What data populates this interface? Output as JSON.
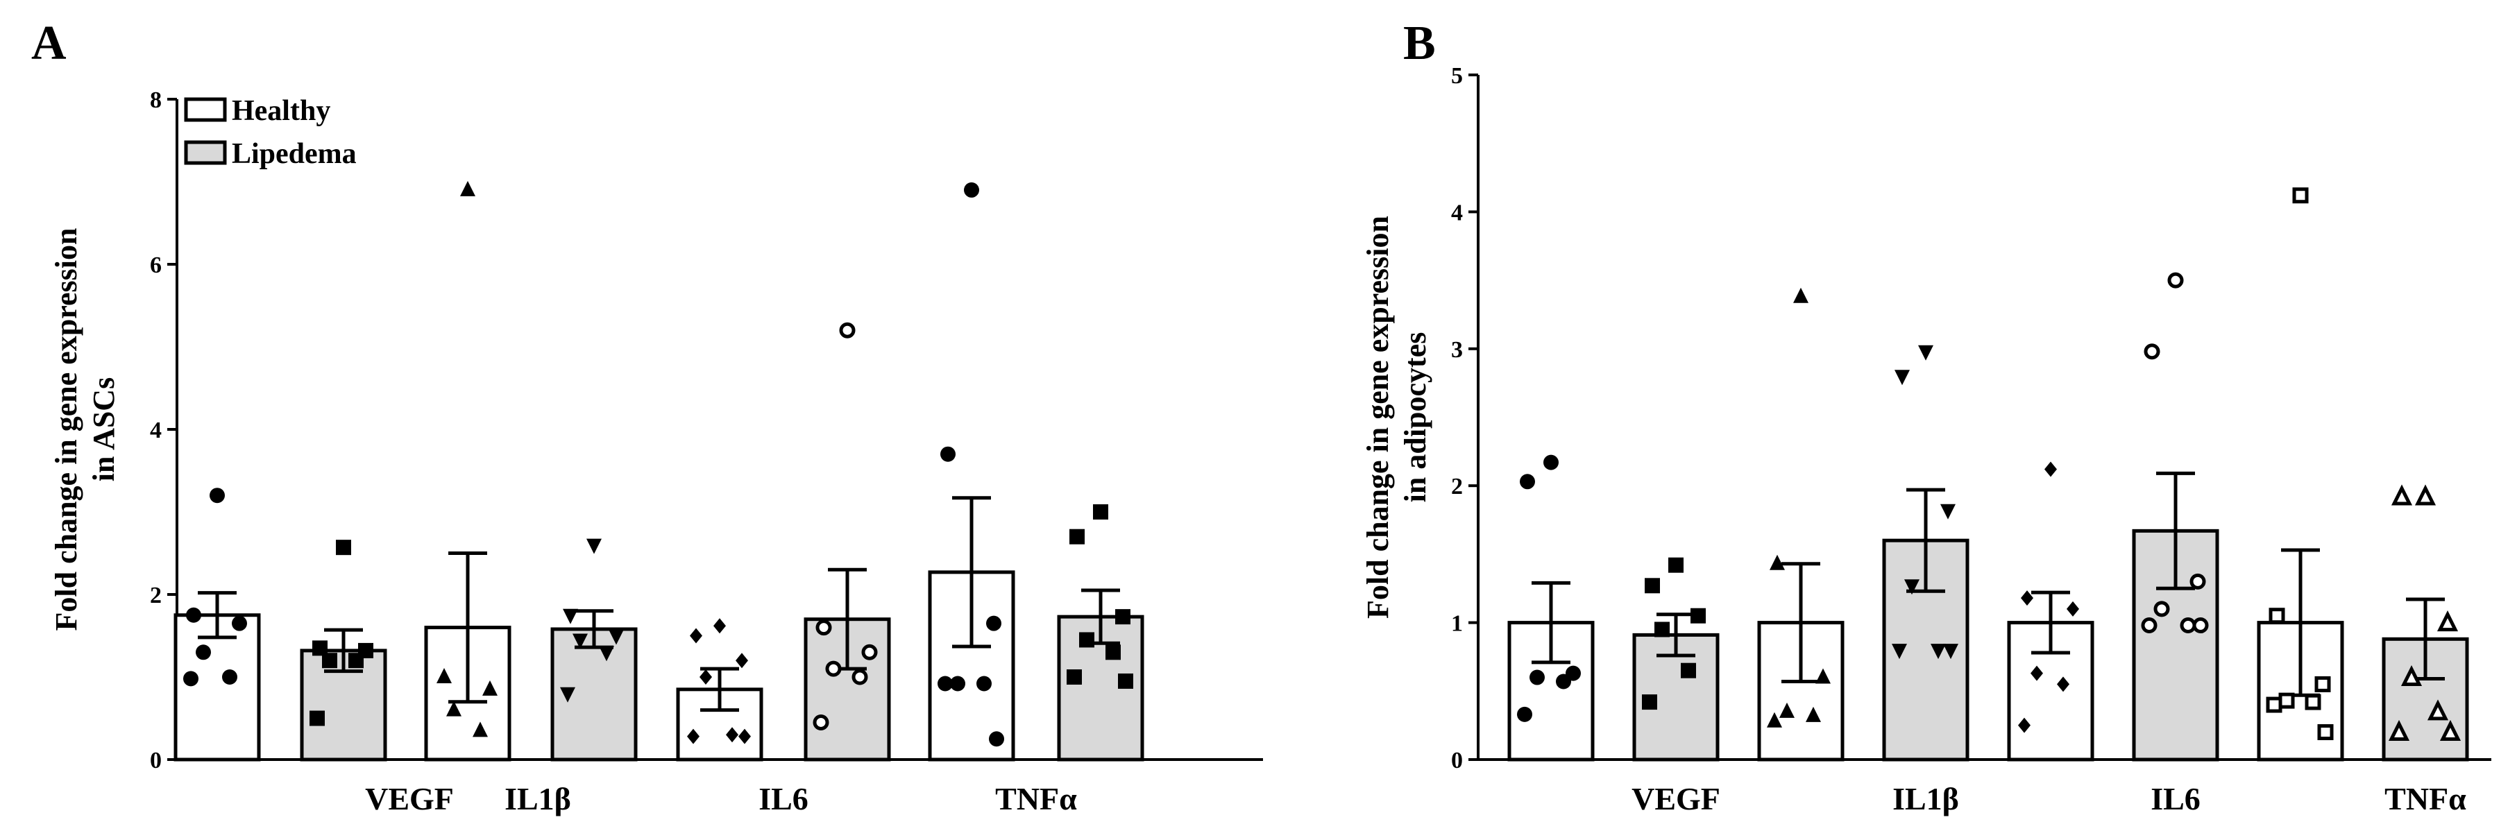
{
  "colors": {
    "healthy": "#ffffff",
    "lipedema": "#d9d9d9",
    "ink": "#000000"
  },
  "legend": {
    "healthy": "Healthy",
    "lipedema": "Lipedema"
  },
  "chart_data": [
    {
      "type": "bar",
      "panel": "A",
      "ylabel": [
        "Fold change in gene expression",
        "in ASCs"
      ],
      "ylim": [
        0,
        8
      ],
      "yticks": [
        0,
        2,
        4,
        6,
        8
      ],
      "categories": [
        "VEGF",
        "IL1β",
        "IL6",
        "TNFα"
      ],
      "series": [
        {
          "name": "Healthy",
          "values": [
            1.75,
            1.6,
            0.85,
            2.27
          ],
          "sem": [
            0.27,
            0.9,
            0.25,
            0.9
          ],
          "points": [
            [
              3.2,
              1.75,
              1.65,
              1.3,
              1.0,
              0.98
            ],
            [
              6.9,
              1.0,
              0.85,
              0.6,
              0.35
            ],
            [
              1.62,
              1.5,
              1.2,
              1.0,
              0.3,
              0.28,
              0.28
            ],
            [
              6.9,
              3.7,
              1.65,
              0.92,
              0.92,
              0.92,
              0.25
            ]
          ]
        },
        {
          "name": "Lipedema",
          "values": [
            1.32,
            1.58,
            1.7,
            1.73
          ],
          "sem": [
            0.25,
            0.22,
            0.6,
            0.32
          ],
          "points": [
            [
              2.57,
              1.35,
              1.32,
              1.2,
              1.2,
              0.5
            ],
            [
              2.6,
              1.75,
              1.5,
              1.45,
              1.3,
              0.8
            ],
            [
              5.2,
              1.6,
              1.3,
              1.1,
              1.0,
              0.45
            ],
            [
              3.0,
              2.7,
              1.73,
              1.45,
              1.3,
              1.0,
              0.95
            ]
          ]
        }
      ]
    },
    {
      "type": "bar",
      "panel": "B",
      "ylabel": [
        "Fold change in gene expression",
        "in adipocytes"
      ],
      "ylim": [
        0,
        5
      ],
      "yticks": [
        0,
        1,
        2,
        3,
        4,
        5
      ],
      "categories": [
        "VEGF",
        "IL1β",
        "IL6",
        "TNFα"
      ],
      "series": [
        {
          "name": "Healthy",
          "values": [
            1.0,
            1.0,
            1.0,
            1.0
          ],
          "sem": [
            0.29,
            0.43,
            0.22,
            0.53
          ],
          "points": [
            [
              2.17,
              2.03,
              0.63,
              0.6,
              0.57,
              0.33
            ],
            [
              3.38,
              1.43,
              0.6,
              0.35,
              0.32,
              0.28
            ],
            [
              2.12,
              1.18,
              1.1,
              0.63,
              0.55,
              0.25
            ],
            [
              4.12,
              1.05,
              0.55,
              0.43,
              0.42,
              0.4,
              0.2
            ]
          ]
        },
        {
          "name": "Lipedema",
          "values": [
            0.91,
            1.6,
            1.67,
            0.88
          ],
          "sem": [
            0.15,
            0.37,
            0.42,
            0.29
          ],
          "points": [
            [
              1.42,
              1.27,
              1.05,
              0.95,
              0.65,
              0.42
            ],
            [
              2.98,
              2.8,
              1.82,
              1.27,
              0.8,
              0.8,
              0.8
            ],
            [
              3.5,
              2.98,
              1.3,
              1.1,
              0.98,
              0.98,
              0.98
            ],
            [
              1.92,
              1.92,
              1.0,
              0.6,
              0.35,
              0.2,
              0.2
            ]
          ]
        }
      ]
    }
  ]
}
